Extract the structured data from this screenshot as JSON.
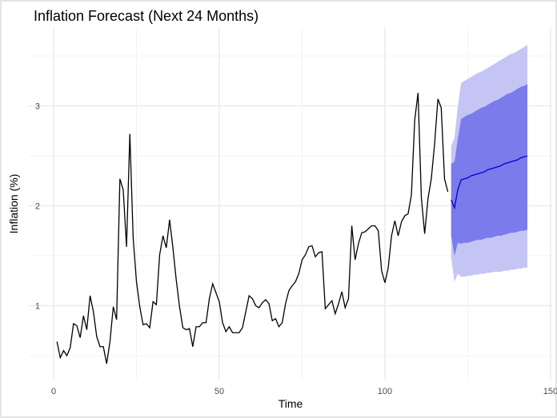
{
  "chart_data": {
    "type": "line",
    "title": "Inflation Forecast (Next 24 Months)",
    "xlabel": "Time",
    "ylabel": "Inflation (%)",
    "xlim": [
      -7.5,
      150.5
    ],
    "ylim": [
      0.26,
      3.78
    ],
    "xticks": [
      0,
      50,
      100,
      150
    ],
    "yticks": [
      1,
      2,
      3
    ],
    "grid": true,
    "legend": "none",
    "colors": {
      "history": "#000000",
      "forecast": "#0000cc",
      "band80": "#7b7bec",
      "band95": "#c5c5f5",
      "grid": "#ebebeb"
    },
    "history": {
      "x_start": 1,
      "values": [
        0.64,
        0.48,
        0.55,
        0.5,
        0.58,
        0.82,
        0.8,
        0.68,
        0.9,
        0.76,
        1.1,
        0.94,
        0.69,
        0.59,
        0.59,
        0.42,
        0.64,
        0.99,
        0.86,
        2.27,
        2.16,
        1.59,
        2.72,
        1.68,
        1.24,
        0.99,
        0.81,
        0.82,
        0.78,
        1.04,
        1.01,
        1.51,
        1.7,
        1.58,
        1.86,
        1.58,
        1.26,
        0.99,
        0.78,
        0.76,
        0.77,
        0.59,
        0.79,
        0.79,
        0.83,
        0.83,
        1.07,
        1.22,
        1.13,
        1.04,
        0.83,
        0.74,
        0.79,
        0.73,
        0.73,
        0.73,
        0.78,
        0.94,
        1.1,
        1.07,
        1.0,
        0.98,
        1.03,
        1.06,
        1.02,
        0.85,
        0.87,
        0.79,
        0.83,
        1.02,
        1.15,
        1.2,
        1.24,
        1.32,
        1.46,
        1.51,
        1.59,
        1.6,
        1.49,
        1.53,
        1.54,
        0.97,
        1.01,
        1.05,
        0.92,
        1.02,
        1.14,
        0.98,
        1.07,
        1.8,
        1.46,
        1.62,
        1.73,
        1.74,
        1.77,
        1.8,
        1.8,
        1.75,
        1.35,
        1.23,
        1.38,
        1.7,
        1.85,
        1.7,
        1.84,
        1.9,
        1.92,
        2.11,
        2.86,
        3.13,
        2.08,
        1.72,
        2.07,
        2.27,
        2.62,
        3.07,
        2.98,
        2.27,
        2.14
      ]
    },
    "forecast": {
      "x_start": 120,
      "mean": [
        2.06,
        1.98,
        2.16,
        2.26,
        2.27,
        2.28,
        2.3,
        2.31,
        2.32,
        2.33,
        2.34,
        2.36,
        2.37,
        2.38,
        2.39,
        2.4,
        2.42,
        2.43,
        2.44,
        2.45,
        2.46,
        2.48,
        2.49,
        2.5
      ],
      "lo80": [
        1.7,
        1.5,
        1.63,
        1.62,
        1.63,
        1.63,
        1.64,
        1.65,
        1.66,
        1.66,
        1.67,
        1.68,
        1.68,
        1.69,
        1.7,
        1.7,
        1.71,
        1.72,
        1.73,
        1.73,
        1.74,
        1.75,
        1.75,
        1.76
      ],
      "hi80": [
        2.42,
        2.44,
        2.67,
        2.87,
        2.89,
        2.91,
        2.92,
        2.94,
        2.96,
        2.98,
        2.99,
        3.01,
        3.03,
        3.05,
        3.06,
        3.08,
        3.1,
        3.12,
        3.13,
        3.15,
        3.17,
        3.19,
        3.2,
        3.22
      ],
      "lo95": [
        1.48,
        1.24,
        1.32,
        1.29,
        1.29,
        1.3,
        1.3,
        1.31,
        1.31,
        1.32,
        1.32,
        1.33,
        1.33,
        1.34,
        1.34,
        1.34,
        1.35,
        1.35,
        1.36,
        1.36,
        1.37,
        1.37,
        1.38,
        1.38
      ],
      "hi95": [
        2.6,
        2.68,
        2.99,
        3.23,
        3.25,
        3.27,
        3.29,
        3.31,
        3.33,
        3.34,
        3.36,
        3.38,
        3.4,
        3.42,
        3.44,
        3.46,
        3.48,
        3.5,
        3.52,
        3.53,
        3.55,
        3.57,
        3.59,
        3.61
      ]
    }
  }
}
